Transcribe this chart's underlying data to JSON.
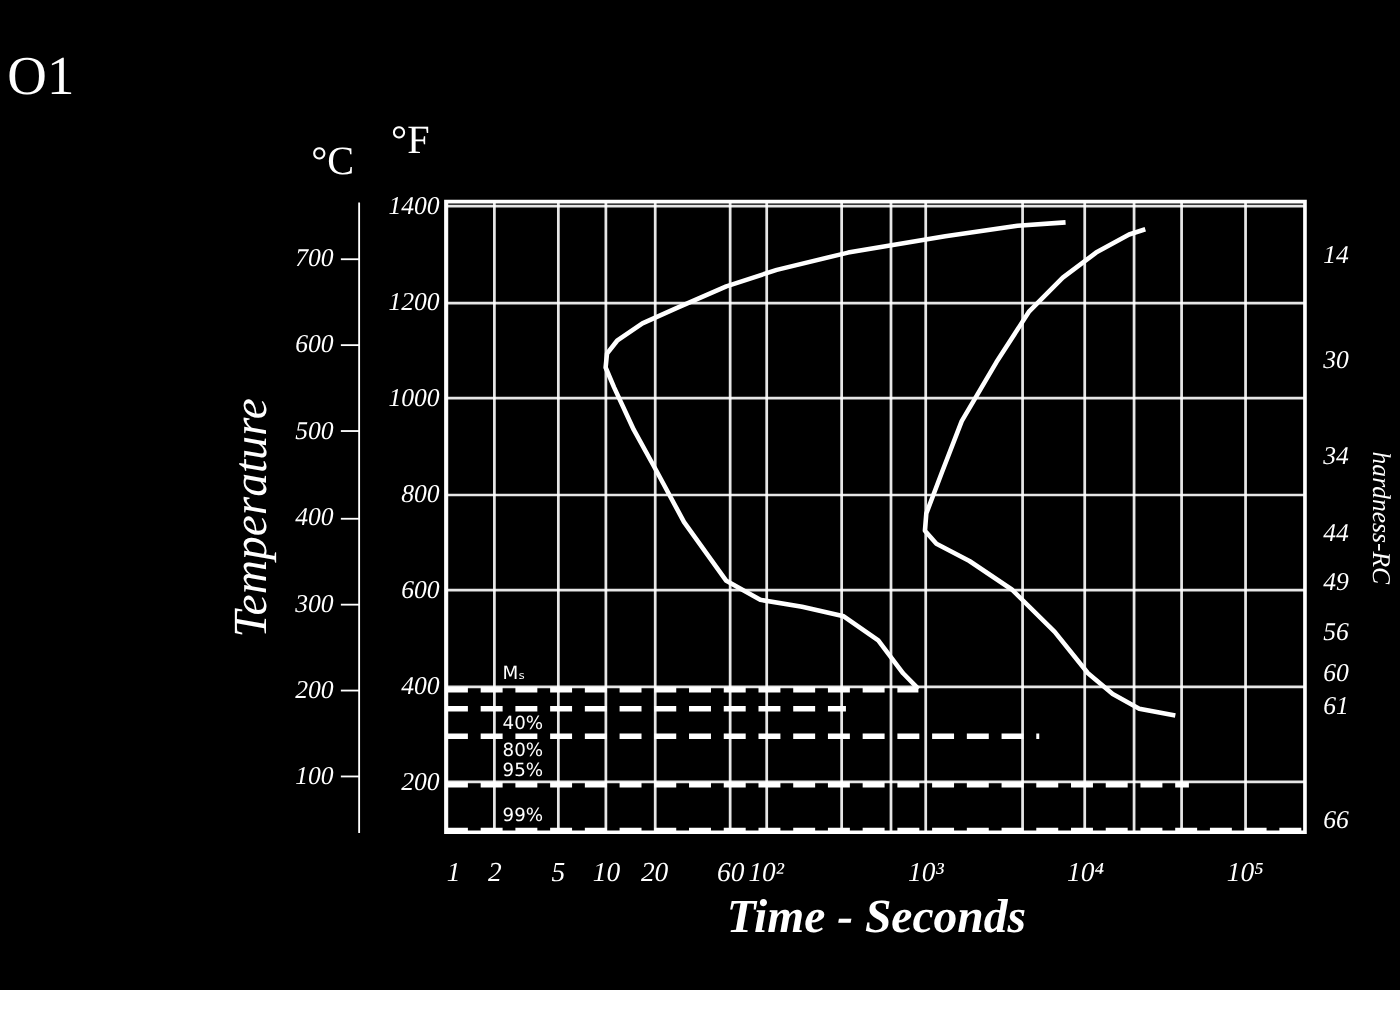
{
  "chart_data": {
    "type": "line",
    "title": "O1",
    "xlabel": "Time - Seconds",
    "ylabel": "Temperature",
    "y2label": "°F",
    "y3label": "hardness-RC",
    "log": "x",
    "grid": true,
    "marker": "none",
    "xlim": [
      1,
      240000
    ],
    "xticks": [
      1,
      2,
      5,
      10,
      20,
      60,
      {
        "value": 100,
        "label": "10²"
      },
      {
        "value": 300,
        "label": null
      },
      {
        "value": 600,
        "label": null
      },
      {
        "value": 1000,
        "label": "10³"
      },
      {
        "value": 4000,
        "label": null
      },
      {
        "value": 10000,
        "label": "10⁴"
      },
      {
        "value": 20000,
        "label": null
      },
      {
        "value": 40000,
        "label": null
      },
      {
        "value": 100000,
        "label": "10⁵"
      }
    ],
    "ylim": [
      35,
      765
    ],
    "yticks": [
      100,
      200,
      300,
      400,
      500,
      600,
      700
    ],
    "y2lim": [
      95,
      1409
    ],
    "y2ticks": [
      200,
      400,
      600,
      800,
      1000,
      1200,
      1400
    ],
    "series": [
      {
        "color": "#ffffff",
        "line_style": "solid",
        "x": [
          7600,
          3800,
          1340,
          330,
          118,
          57,
          28,
          17,
          11.8,
          10.2,
          10,
          11.3,
          15,
          21,
          31,
          57,
          93,
          170,
          310,
          510,
          730,
          910
        ],
        "values": [
          741,
          737,
          725,
          706,
          686,
          667,
          642,
          624,
          604,
          589,
          573,
          550,
          501,
          452,
          394,
          326,
          304,
          296,
          285,
          257,
          219,
          201
        ]
      },
      {
        "color": "#ffffff",
        "line_style": "solid",
        "x": [
          24000,
          19000,
          11800,
          7300,
          4500,
          2800,
          1700,
          1280,
          1020,
          1000,
          1180,
          1900,
          3500,
          6500,
          10500,
          15000,
          22000,
          37000
        ],
        "values": [
          733,
          727,
          706,
          677,
          638,
          579,
          511,
          452,
          404,
          384,
          369,
          349,
          316,
          267,
          219,
          195,
          178,
          170
        ]
      },
      {
        "color": "#ffffff",
        "line_style": "dashed",
        "x": [
          1,
          910
        ],
        "values": [
          200,
          200
        ]
      },
      {
        "color": "#ffffff",
        "line_style": "dashed",
        "x": [
          1,
          320
        ],
        "values": [
          178,
          178
        ]
      },
      {
        "color": "#ffffff",
        "line_style": "dashed",
        "x": [
          1,
          5200
        ],
        "values": [
          146,
          146
        ]
      },
      {
        "color": "#ffffff",
        "line_style": "dashed",
        "x": [
          1,
          45000
        ],
        "values": [
          90,
          90
        ]
      },
      {
        "color": "#ffffff",
        "line_style": "dashed",
        "x": [
          1,
          240000
        ],
        "values": [
          37,
          37
        ]
      }
    ],
    "annotations": [
      "°C",
      {
        "text": "Mₛ",
        "y": 200
      },
      {
        "text": "40%",
        "y": 178
      },
      {
        "text": "80%",
        "y": 146
      },
      {
        "text": "95%",
        "y": 90
      },
      {
        "text": "99%",
        "y": 37
      },
      "14",
      "30",
      "34",
      "44",
      "49",
      "56",
      "60",
      "61",
      "66"
    ]
  }
}
